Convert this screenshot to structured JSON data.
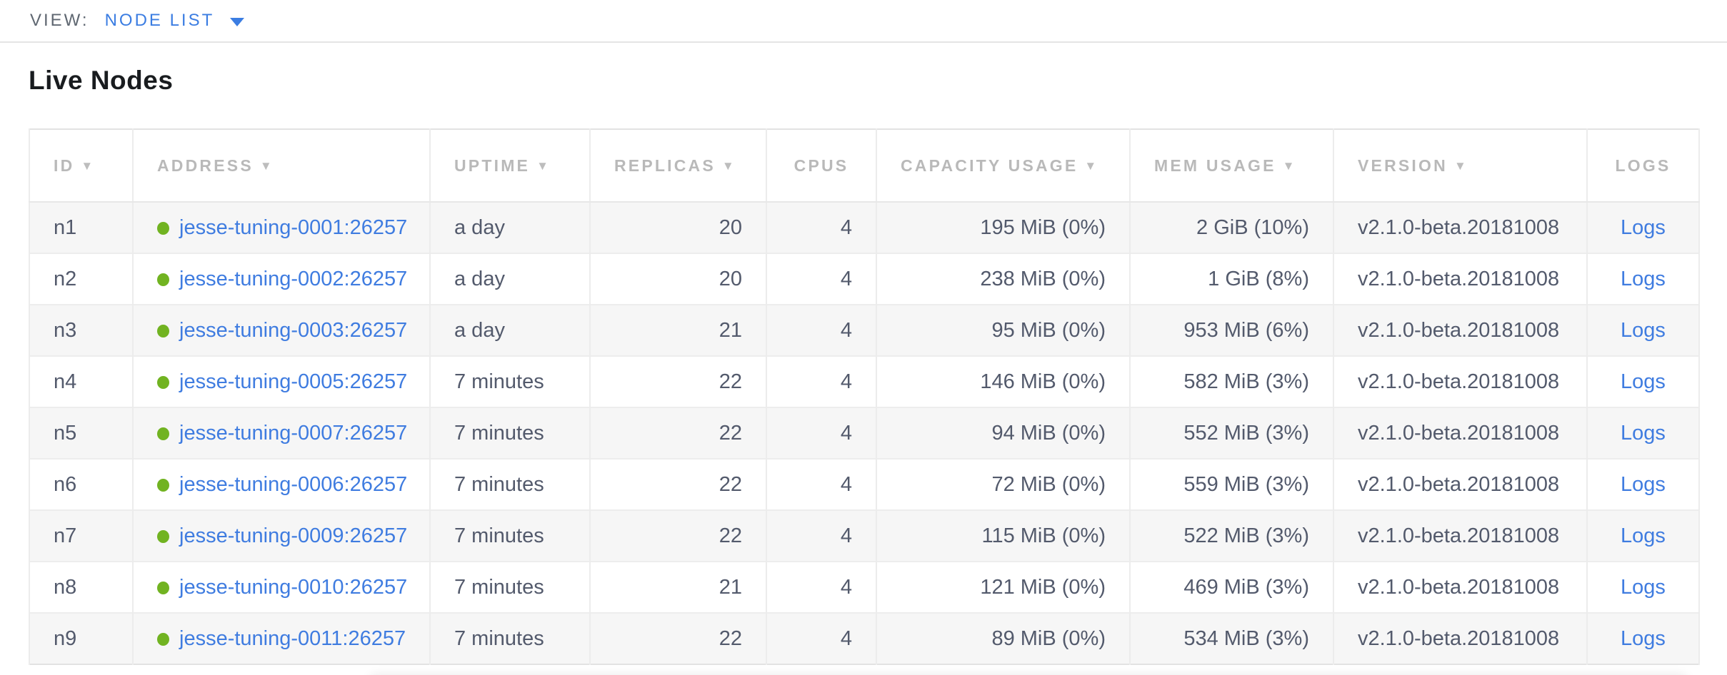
{
  "view_bar": {
    "label": "VIEW:",
    "selected": "NODE LIST"
  },
  "page": {
    "title": "Live Nodes"
  },
  "table": {
    "sort_icon": "▼",
    "columns": [
      {
        "key": "id",
        "label": "ID",
        "sorted": true,
        "align": "left",
        "header_align": "left",
        "type": "text"
      },
      {
        "key": "address",
        "label": "ADDRESS",
        "sorted": true,
        "align": "left",
        "header_align": "left",
        "type": "node-link"
      },
      {
        "key": "uptime",
        "label": "UPTIME",
        "sorted": true,
        "align": "left",
        "header_align": "left",
        "type": "text"
      },
      {
        "key": "replicas",
        "label": "REPLICAS",
        "sorted": true,
        "align": "right",
        "header_align": "left",
        "type": "text"
      },
      {
        "key": "cpus",
        "label": "CPUS",
        "sorted": false,
        "align": "right",
        "header_align": "center",
        "type": "text"
      },
      {
        "key": "capacity",
        "label": "CAPACITY USAGE",
        "sorted": true,
        "align": "right",
        "header_align": "left",
        "type": "text"
      },
      {
        "key": "mem",
        "label": "MEM USAGE",
        "sorted": true,
        "align": "right",
        "header_align": "left",
        "type": "text"
      },
      {
        "key": "version",
        "label": "VERSION",
        "sorted": true,
        "align": "left",
        "header_align": "left",
        "type": "text"
      },
      {
        "key": "logs",
        "label": "LOGS",
        "sorted": false,
        "align": "center",
        "header_align": "center",
        "type": "link"
      }
    ],
    "rows": [
      {
        "id": "n1",
        "address": "jesse-tuning-0001:26257",
        "status": "healthy",
        "uptime": "a day",
        "replicas": "20",
        "cpus": "4",
        "capacity": "195 MiB (0%)",
        "mem": "2 GiB (10%)",
        "version": "v2.1.0-beta.20181008",
        "logs": "Logs"
      },
      {
        "id": "n2",
        "address": "jesse-tuning-0002:26257",
        "status": "healthy",
        "uptime": "a day",
        "replicas": "20",
        "cpus": "4",
        "capacity": "238 MiB (0%)",
        "mem": "1 GiB (8%)",
        "version": "v2.1.0-beta.20181008",
        "logs": "Logs"
      },
      {
        "id": "n3",
        "address": "jesse-tuning-0003:26257",
        "status": "healthy",
        "uptime": "a day",
        "replicas": "21",
        "cpus": "4",
        "capacity": "95 MiB (0%)",
        "mem": "953 MiB (6%)",
        "version": "v2.1.0-beta.20181008",
        "logs": "Logs"
      },
      {
        "id": "n4",
        "address": "jesse-tuning-0005:26257",
        "status": "healthy",
        "uptime": "7 minutes",
        "replicas": "22",
        "cpus": "4",
        "capacity": "146 MiB (0%)",
        "mem": "582 MiB (3%)",
        "version": "v2.1.0-beta.20181008",
        "logs": "Logs"
      },
      {
        "id": "n5",
        "address": "jesse-tuning-0007:26257",
        "status": "healthy",
        "uptime": "7 minutes",
        "replicas": "22",
        "cpus": "4",
        "capacity": "94 MiB (0%)",
        "mem": "552 MiB (3%)",
        "version": "v2.1.0-beta.20181008",
        "logs": "Logs"
      },
      {
        "id": "n6",
        "address": "jesse-tuning-0006:26257",
        "status": "healthy",
        "uptime": "7 minutes",
        "replicas": "22",
        "cpus": "4",
        "capacity": "72 MiB (0%)",
        "mem": "559 MiB (3%)",
        "version": "v2.1.0-beta.20181008",
        "logs": "Logs"
      },
      {
        "id": "n7",
        "address": "jesse-tuning-0009:26257",
        "status": "healthy",
        "uptime": "7 minutes",
        "replicas": "22",
        "cpus": "4",
        "capacity": "115 MiB (0%)",
        "mem": "522 MiB (3%)",
        "version": "v2.1.0-beta.20181008",
        "logs": "Logs"
      },
      {
        "id": "n8",
        "address": "jesse-tuning-0010:26257",
        "status": "healthy",
        "uptime": "7 minutes",
        "replicas": "21",
        "cpus": "4",
        "capacity": "121 MiB (0%)",
        "mem": "469 MiB (3%)",
        "version": "v2.1.0-beta.20181008",
        "logs": "Logs"
      },
      {
        "id": "n9",
        "address": "jesse-tuning-0011:26257",
        "status": "healthy",
        "uptime": "7 minutes",
        "replicas": "22",
        "cpus": "4",
        "capacity": "89 MiB (0%)",
        "mem": "534 MiB (3%)",
        "version": "v2.1.0-beta.20181008",
        "logs": "Logs"
      }
    ]
  },
  "colors": {
    "link_blue": "#3f7ce0",
    "accent_blue": "#3b7de2",
    "status_healthy_green": "#71b321",
    "header_gray": "#b9b9b9",
    "cell_text": "#535a6c",
    "row_stripe": "#f6f6f6"
  }
}
